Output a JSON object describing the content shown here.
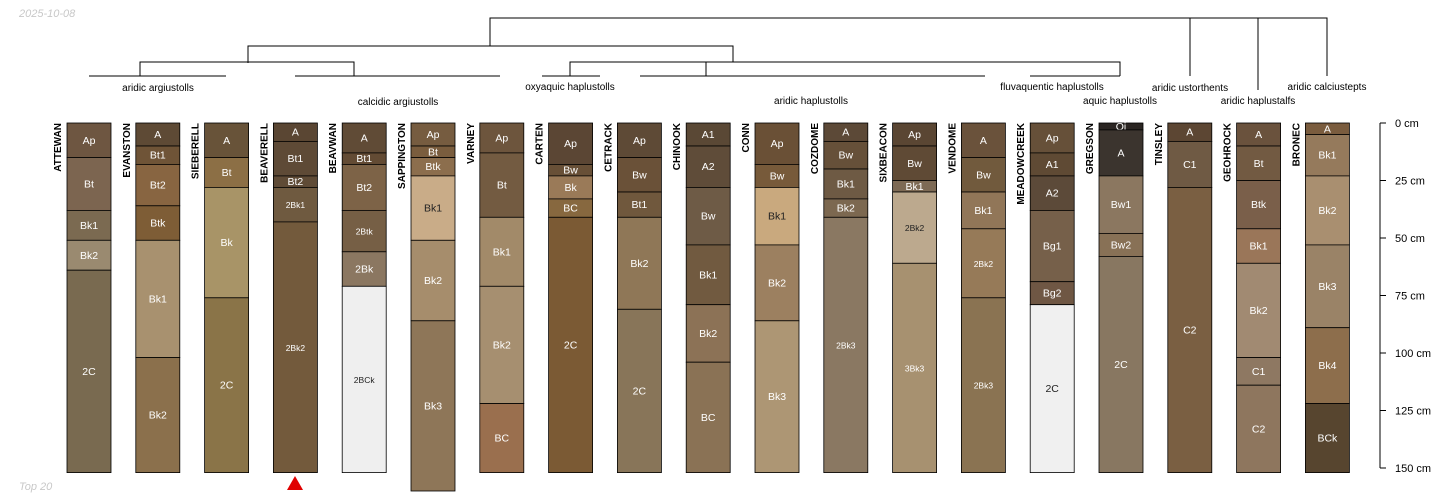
{
  "date_label": "2025-10-08",
  "footer_label": "Top 20",
  "depth_axis": {
    "unit": "cm",
    "min": 0,
    "max": 150,
    "ticks": [
      0,
      25,
      50,
      75,
      100,
      125,
      150
    ],
    "tick_labels": [
      "0 cm",
      "25 cm",
      "50 cm",
      "75 cm",
      "100 cm",
      "125 cm",
      "150 cm"
    ]
  },
  "taxa_labels": [
    "aridic argiustolls",
    "calcidic argiustolls",
    "oxyaquic haplustolls",
    "aridic haplustolls",
    "fluvaquentic haplustolls",
    "aquic haplustolls",
    "aridic ustorthents",
    "aridic haplustalfs",
    "aridic calciustepts"
  ],
  "marker": {
    "profile": "BEAVERELL",
    "symbol": "red-triangle",
    "color": "#e00000"
  },
  "profiles": [
    {
      "name": "ATTEWAN",
      "horizons": [
        {
          "name": "Ap",
          "top": 0,
          "bottom": 15,
          "color": "#6e5641"
        },
        {
          "name": "Bt",
          "top": 15,
          "bottom": 38,
          "color": "#7c6550"
        },
        {
          "name": "Bk1",
          "top": 38,
          "bottom": 51,
          "color": "#7b6a51"
        },
        {
          "name": "Bk2",
          "top": 51,
          "bottom": 64,
          "color": "#9a8a70"
        },
        {
          "name": "2C",
          "top": 64,
          "bottom": 152,
          "color": "#796a50"
        }
      ]
    },
    {
      "name": "EVANSTON",
      "horizons": [
        {
          "name": "A",
          "top": 0,
          "bottom": 10,
          "color": "#5e4a35"
        },
        {
          "name": "Bt1",
          "top": 10,
          "bottom": 18,
          "color": "#6f5437"
        },
        {
          "name": "Bt2",
          "top": 18,
          "bottom": 36,
          "color": "#886541"
        },
        {
          "name": "Btk",
          "top": 36,
          "bottom": 51,
          "color": "#7e5d36"
        },
        {
          "name": "Bk1",
          "top": 51,
          "bottom": 102,
          "color": "#a8916f"
        },
        {
          "name": "Bk2",
          "top": 102,
          "bottom": 152,
          "color": "#8b704c"
        }
      ]
    },
    {
      "name": "SIEBERELL",
      "horizons": [
        {
          "name": "A",
          "top": 0,
          "bottom": 15,
          "color": "#685339"
        },
        {
          "name": "Bt",
          "top": 15,
          "bottom": 28,
          "color": "#8c6f45"
        },
        {
          "name": "Bk",
          "top": 28,
          "bottom": 76,
          "color": "#a89467"
        },
        {
          "name": "2C",
          "top": 76,
          "bottom": 152,
          "color": "#8a7448"
        }
      ]
    },
    {
      "name": "BEAVERELL",
      "horizons": [
        {
          "name": "A",
          "top": 0,
          "bottom": 8,
          "color": "#5a4633"
        },
        {
          "name": "Bt1",
          "top": 8,
          "bottom": 23,
          "color": "#5e4a36"
        },
        {
          "name": "Bt2",
          "top": 23,
          "bottom": 28,
          "color": "#5f4b36"
        },
        {
          "name": "2Bk1",
          "top": 28,
          "bottom": 43,
          "color": "#6f5a40"
        },
        {
          "name": "2Bk2",
          "top": 43,
          "bottom": 152,
          "color": "#735a3c"
        }
      ]
    },
    {
      "name": "BEAVWAN",
      "horizons": [
        {
          "name": "A",
          "top": 0,
          "bottom": 13,
          "color": "#604b36"
        },
        {
          "name": "Bt1",
          "top": 13,
          "bottom": 18,
          "color": "#634b34"
        },
        {
          "name": "Bt2",
          "top": 18,
          "bottom": 38,
          "color": "#7d6347"
        },
        {
          "name": "2Btk",
          "top": 38,
          "bottom": 56,
          "color": "#765f45"
        },
        {
          "name": "2Bk",
          "top": 56,
          "bottom": 71,
          "color": "#8b7761"
        },
        {
          "name": "2BCk",
          "top": 71,
          "bottom": 152,
          "color": "#efefef"
        }
      ]
    },
    {
      "name": "SAPPINGTON",
      "horizons": [
        {
          "name": "Ap",
          "top": 0,
          "bottom": 10,
          "color": "#765c40"
        },
        {
          "name": "Bt",
          "top": 10,
          "bottom": 15,
          "color": "#7a5d3e"
        },
        {
          "name": "Btk",
          "top": 15,
          "bottom": 23,
          "color": "#8c6e4d"
        },
        {
          "name": "Bk1",
          "top": 23,
          "bottom": 51,
          "color": "#c9ac88"
        },
        {
          "name": "Bk2",
          "top": 51,
          "bottom": 86,
          "color": "#a68d6c"
        },
        {
          "name": "Bk3",
          "top": 86,
          "bottom": 160,
          "color": "#8e7658"
        }
      ]
    },
    {
      "name": "VARNEY",
      "horizons": [
        {
          "name": "Ap",
          "top": 0,
          "bottom": 13,
          "color": "#6d553d"
        },
        {
          "name": "Bt",
          "top": 13,
          "bottom": 41,
          "color": "#735b41"
        },
        {
          "name": "Bk1",
          "top": 41,
          "bottom": 71,
          "color": "#a28a69"
        },
        {
          "name": "Bk2",
          "top": 71,
          "bottom": 122,
          "color": "#a68f70"
        },
        {
          "name": "BC",
          "top": 122,
          "bottom": 152,
          "color": "#9a6f4e"
        }
      ]
    },
    {
      "name": "CARTEN",
      "horizons": [
        {
          "name": "Ap",
          "top": 0,
          "bottom": 18,
          "color": "#5b4634"
        },
        {
          "name": "Bw",
          "top": 18,
          "bottom": 23,
          "color": "#685037"
        },
        {
          "name": "Bk",
          "top": 23,
          "bottom": 33,
          "color": "#9a7a58"
        },
        {
          "name": "BC",
          "top": 33,
          "bottom": 41,
          "color": "#87683f"
        },
        {
          "name": "2C",
          "top": 41,
          "bottom": 152,
          "color": "#7b5a34"
        }
      ]
    },
    {
      "name": "CETRACK",
      "horizons": [
        {
          "name": "Ap",
          "top": 0,
          "bottom": 15,
          "color": "#5e4a36"
        },
        {
          "name": "Bw",
          "top": 15,
          "bottom": 30,
          "color": "#6a5138"
        },
        {
          "name": "Bt1",
          "top": 30,
          "bottom": 41,
          "color": "#70583d"
        },
        {
          "name": "Bk2",
          "top": 41,
          "bottom": 81,
          "color": "#8f7757"
        },
        {
          "name": "2C",
          "top": 81,
          "bottom": 152,
          "color": "#887559"
        }
      ]
    },
    {
      "name": "CHINOOK",
      "horizons": [
        {
          "name": "A1",
          "top": 0,
          "bottom": 10,
          "color": "#5a4835"
        },
        {
          "name": "A2",
          "top": 10,
          "bottom": 28,
          "color": "#5f4c39"
        },
        {
          "name": "Bw",
          "top": 28,
          "bottom": 53,
          "color": "#6e5b46"
        },
        {
          "name": "Bk1",
          "top": 53,
          "bottom": 79,
          "color": "#715a40"
        },
        {
          "name": "Bk2",
          "top": 79,
          "bottom": 104,
          "color": "#8c7256"
        },
        {
          "name": "BC",
          "top": 104,
          "bottom": 152,
          "color": "#8a7255"
        }
      ]
    },
    {
      "name": "CONN",
      "horizons": [
        {
          "name": "Ap",
          "top": 0,
          "bottom": 18,
          "color": "#6a5036"
        },
        {
          "name": "Bw",
          "top": 18,
          "bottom": 28,
          "color": "#775a3a"
        },
        {
          "name": "Bk1",
          "top": 28,
          "bottom": 53,
          "color": "#c9a97e"
        },
        {
          "name": "Bk2",
          "top": 53,
          "bottom": 86,
          "color": "#9c8060"
        },
        {
          "name": "Bk3",
          "top": 86,
          "bottom": 152,
          "color": "#ad9674"
        }
      ]
    },
    {
      "name": "COZDOME",
      "horizons": [
        {
          "name": "A",
          "top": 0,
          "bottom": 8,
          "color": "#5c4937"
        },
        {
          "name": "Bw",
          "top": 8,
          "bottom": 20,
          "color": "#665039"
        },
        {
          "name": "Bk1",
          "top": 20,
          "bottom": 33,
          "color": "#6e5a44"
        },
        {
          "name": "Bk2",
          "top": 33,
          "bottom": 41,
          "color": "#7c6850"
        },
        {
          "name": "2Bk3",
          "top": 41,
          "bottom": 152,
          "color": "#8a7862"
        }
      ]
    },
    {
      "name": "SIXBEACON",
      "horizons": [
        {
          "name": "Ap",
          "top": 0,
          "bottom": 10,
          "color": "#5a4633"
        },
        {
          "name": "Bw",
          "top": 10,
          "bottom": 25,
          "color": "#5f4a35"
        },
        {
          "name": "Bk1",
          "top": 25,
          "bottom": 30,
          "color": "#7d6a55"
        },
        {
          "name": "2Bk2",
          "top": 30,
          "bottom": 61,
          "color": "#bca98e"
        },
        {
          "name": "3Bk3",
          "top": 61,
          "bottom": 152,
          "color": "#a79170"
        }
      ]
    },
    {
      "name": "VENDOME",
      "horizons": [
        {
          "name": "A",
          "top": 0,
          "bottom": 15,
          "color": "#6a523b"
        },
        {
          "name": "Bw",
          "top": 15,
          "bottom": 30,
          "color": "#715a3d"
        },
        {
          "name": "Bk1",
          "top": 30,
          "bottom": 46,
          "color": "#917658"
        },
        {
          "name": "2Bk2",
          "top": 46,
          "bottom": 76,
          "color": "#967a58"
        },
        {
          "name": "2Bk3",
          "top": 76,
          "bottom": 152,
          "color": "#8a7352"
        }
      ]
    },
    {
      "name": "MEADOWCREEK",
      "horizons": [
        {
          "name": "Ap",
          "top": 0,
          "bottom": 13,
          "color": "#665039"
        },
        {
          "name": "A1",
          "top": 13,
          "bottom": 23,
          "color": "#5f4a34"
        },
        {
          "name": "A2",
          "top": 23,
          "bottom": 38,
          "color": "#5c4a39"
        },
        {
          "name": "Bg1",
          "top": 38,
          "bottom": 69,
          "color": "#76604a"
        },
        {
          "name": "Bg2",
          "top": 69,
          "bottom": 79,
          "color": "#6f5744"
        },
        {
          "name": "2C",
          "top": 79,
          "bottom": 152,
          "color": "#f0f0f0"
        }
      ]
    },
    {
      "name": "GREGSON",
      "horizons": [
        {
          "name": "Oi",
          "top": 0,
          "bottom": 3,
          "color": "#2a2522"
        },
        {
          "name": "A",
          "top": 3,
          "bottom": 23,
          "color": "#3b342e"
        },
        {
          "name": "Bw1",
          "top": 23,
          "bottom": 48,
          "color": "#8b7760"
        },
        {
          "name": "Bw2",
          "top": 48,
          "bottom": 58,
          "color": "#887156"
        },
        {
          "name": "2C",
          "top": 58,
          "bottom": 152,
          "color": "#887761"
        }
      ]
    },
    {
      "name": "TINSLEY",
      "horizons": [
        {
          "name": "A",
          "top": 0,
          "bottom": 8,
          "color": "#5c4633"
        },
        {
          "name": "C1",
          "top": 8,
          "bottom": 28,
          "color": "#6f5a44"
        },
        {
          "name": "C2",
          "top": 28,
          "bottom": 152,
          "color": "#7a5f42"
        }
      ]
    },
    {
      "name": "GEOHROCK",
      "horizons": [
        {
          "name": "A",
          "top": 0,
          "bottom": 10,
          "color": "#6a523d"
        },
        {
          "name": "Bt",
          "top": 10,
          "bottom": 25,
          "color": "#725a42"
        },
        {
          "name": "Btk",
          "top": 25,
          "bottom": 46,
          "color": "#7a5f4a"
        },
        {
          "name": "Bk1",
          "top": 46,
          "bottom": 61,
          "color": "#9a7659"
        },
        {
          "name": "Bk2",
          "top": 61,
          "bottom": 102,
          "color": "#a18a72"
        },
        {
          "name": "C1",
          "top": 102,
          "bottom": 114,
          "color": "#8e7862"
        },
        {
          "name": "C2",
          "top": 114,
          "bottom": 152,
          "color": "#8e765e"
        }
      ]
    },
    {
      "name": "BRONEC",
      "horizons": [
        {
          "name": "A",
          "top": 0,
          "bottom": 5,
          "color": "#7a5c3e"
        },
        {
          "name": "Bk1",
          "top": 5,
          "bottom": 23,
          "color": "#957a5c"
        },
        {
          "name": "Bk2",
          "top": 23,
          "bottom": 53,
          "color": "#a98f70"
        },
        {
          "name": "Bk3",
          "top": 53,
          "bottom": 89,
          "color": "#9a8367"
        },
        {
          "name": "Bk4",
          "top": 89,
          "bottom": 122,
          "color": "#8d6e4c"
        },
        {
          "name": "BCk",
          "top": 122,
          "bottom": 152,
          "color": "#57452f"
        }
      ]
    }
  ]
}
